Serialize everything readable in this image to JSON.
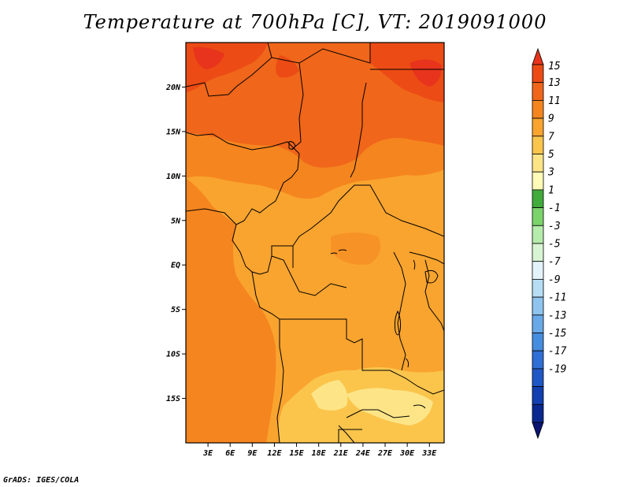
{
  "title": "Temperature at 700hPa [C], VT: 2019091000",
  "credit": "GrADS: IGES/COLA",
  "map": {
    "lat_ticks": [
      "20N",
      "15N",
      "10N",
      "5N",
      "EQ",
      "5S",
      "10S",
      "15S"
    ],
    "lon_ticks": [
      "3E",
      "6E",
      "9E",
      "12E",
      "15E",
      "18E",
      "21E",
      "24E",
      "27E",
      "30E",
      "33E"
    ],
    "lat_range": [
      -20,
      25
    ],
    "lon_range": [
      0,
      35
    ]
  },
  "colorbar": {
    "labels": [
      "15",
      "13",
      "11",
      "9",
      "7",
      "5",
      "3",
      "1",
      "-1",
      "-3",
      "-5",
      "-7",
      "-9",
      "-11",
      "-13",
      "-15",
      "-17",
      "-19"
    ],
    "colors": [
      "#e8341c",
      "#ec4b15",
      "#f0661a",
      "#f5851f",
      "#f9a42f",
      "#fbc54c",
      "#fde587",
      "#fefab8",
      "#41ab3b",
      "#7bd36b",
      "#b5ebab",
      "#d8f5d3",
      "#e4f3fa",
      "#b7ddf4",
      "#8fc4ee",
      "#6aa9e8",
      "#468ddf",
      "#2f6fd6",
      "#2057c6",
      "#133fb0",
      "#0a2890",
      "#0a1470"
    ]
  }
}
